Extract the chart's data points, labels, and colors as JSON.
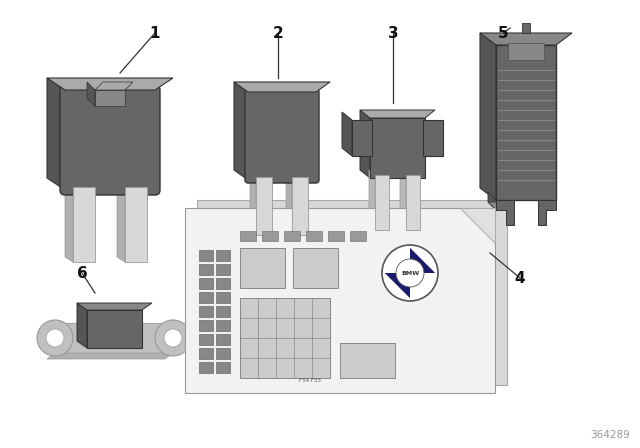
{
  "background_color": "#ffffff",
  "part_number": "364289",
  "dark_gray": "#666666",
  "dark_gray2": "#555555",
  "medium_gray": "#888888",
  "light_gray": "#aaaaaa",
  "silver": "#c0c0c0",
  "silver2": "#d8d8d8",
  "edge_dark": "#333333",
  "label_color": "#111111",
  "card_color": "#e8e8e8",
  "card_back": "#cccccc"
}
